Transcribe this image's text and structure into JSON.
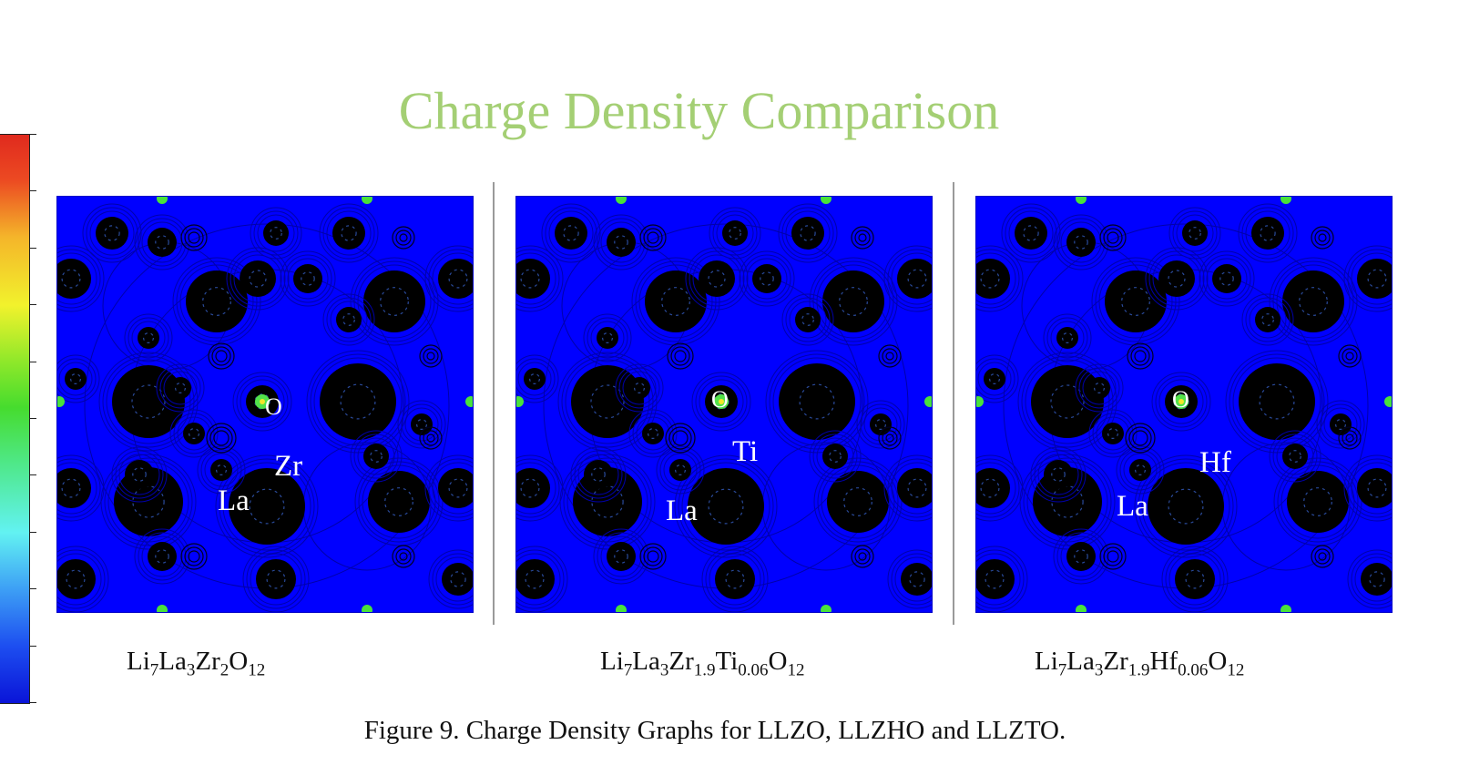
{
  "title": "Charge Density Comparison",
  "colors": {
    "title": "#a4cf74",
    "background_density": "#0000ff",
    "high_density": "#000000",
    "label_text": "#ffffff"
  },
  "colorbar": {
    "gradient_low_to_high": [
      "#0a14d8",
      "#3d9ff5",
      "#62f2f2",
      "#46dc2e",
      "#f2f22c",
      "#e02a1e"
    ],
    "tick_count": 11
  },
  "panels": [
    {
      "id": "llzo",
      "labels": {
        "la": "La",
        "dopant": "Zr",
        "oxygen": "O"
      },
      "formula": [
        {
          "t": "Li"
        },
        {
          "s": "7"
        },
        {
          "t": "La"
        },
        {
          "s": "3"
        },
        {
          "t": "Zr"
        },
        {
          "s": "2"
        },
        {
          "t": "O"
        },
        {
          "s": "12"
        }
      ]
    },
    {
      "id": "llzto",
      "labels": {
        "la": "La",
        "dopant": "Ti",
        "oxygen": "O"
      },
      "formula": [
        {
          "t": "Li"
        },
        {
          "s": "7"
        },
        {
          "t": "La"
        },
        {
          "s": "3"
        },
        {
          "t": "Zr"
        },
        {
          "s": "1.9"
        },
        {
          "t": "Ti"
        },
        {
          "s": "0.06"
        },
        {
          "t": "O"
        },
        {
          "s": "12"
        }
      ]
    },
    {
      "id": "llzho",
      "labels": {
        "la": "La",
        "dopant": "Hf",
        "oxygen": "O"
      },
      "formula": [
        {
          "t": "Li"
        },
        {
          "s": "7"
        },
        {
          "t": "La"
        },
        {
          "s": "3"
        },
        {
          "t": "Zr"
        },
        {
          "s": "1.9"
        },
        {
          "t": "Hf"
        },
        {
          "s": "0.06"
        },
        {
          "t": "O"
        },
        {
          "s": "12"
        }
      ]
    }
  ],
  "caption": "Figure 9. Charge Density Graphs for LLZO, LLZHO and LLZTO."
}
